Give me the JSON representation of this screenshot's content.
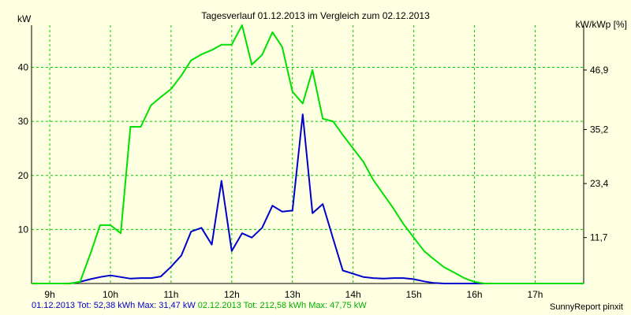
{
  "chart_data": {
    "type": "line",
    "title": "Tagesverlauf 01.12.2013 im Vergleich zum 02.12.2013",
    "ylabel_left": "kW",
    "ylabel_right": "kW/kWp [%]",
    "x_ticks": [
      {
        "value": 9,
        "label": "9h"
      },
      {
        "value": 10,
        "label": "10h"
      },
      {
        "value": 11,
        "label": "11h"
      },
      {
        "value": 12,
        "label": "12h"
      },
      {
        "value": 13,
        "label": "13h"
      },
      {
        "value": 14,
        "label": "14h"
      },
      {
        "value": 15,
        "label": "15h"
      },
      {
        "value": 16,
        "label": "16h"
      },
      {
        "value": 17,
        "label": "17h"
      }
    ],
    "y_ticks_left": [
      {
        "value": 10,
        "label": "10"
      },
      {
        "value": 20,
        "label": "20"
      },
      {
        "value": 30,
        "label": "30"
      },
      {
        "value": 40,
        "label": "40"
      }
    ],
    "y_ticks_right": [
      {
        "value": 8.5,
        "label": "11,7"
      },
      {
        "value": 18.5,
        "label": "23,4"
      },
      {
        "value": 28.5,
        "label": "35,2"
      },
      {
        "value": 39.5,
        "label": "46,9"
      }
    ],
    "xlim": [
      8.7,
      17.8
    ],
    "ylim": [
      0,
      47.8
    ],
    "grid": true,
    "series": [
      {
        "name": "01.12.2013",
        "color": "#0000cc",
        "x": [
          9.33,
          9.5,
          9.67,
          9.83,
          10.0,
          10.17,
          10.33,
          10.5,
          10.67,
          10.83,
          11.0,
          11.17,
          11.33,
          11.5,
          11.67,
          11.83,
          12.0,
          12.17,
          12.33,
          12.5,
          12.67,
          12.83,
          13.0,
          13.17,
          13.33,
          13.5,
          13.67,
          13.83,
          14.0,
          14.17,
          14.33,
          14.5,
          14.67,
          14.83,
          15.0,
          15.17,
          15.33,
          15.5,
          15.67,
          15.83,
          16.0,
          16.17,
          16.33,
          16.5,
          16.67,
          16.83,
          17.0,
          17.17,
          17.33,
          17.5
        ],
        "values": [
          0,
          0.3,
          0.8,
          1.2,
          1.5,
          1.2,
          0.9,
          1.0,
          1.0,
          1.3,
          3.1,
          5.2,
          9.6,
          10.3,
          7.2,
          19.0,
          6.0,
          9.3,
          8.5,
          10.3,
          14.4,
          13.3,
          13.5,
          31.3,
          13.0,
          14.7,
          8.3,
          2.4,
          1.8,
          1.2,
          1.0,
          0.9,
          1.0,
          1.0,
          0.8,
          0.4,
          0.1,
          0,
          0,
          0,
          0,
          0,
          0,
          0,
          0,
          0,
          0,
          0,
          0,
          0
        ]
      },
      {
        "name": "02.12.2013",
        "color": "#00e000",
        "x": [
          8.7,
          8.83,
          9.0,
          9.17,
          9.33,
          9.5,
          9.67,
          9.83,
          10.0,
          10.17,
          10.33,
          10.5,
          10.67,
          10.83,
          11.0,
          11.17,
          11.33,
          11.5,
          11.67,
          11.83,
          12.0,
          12.17,
          12.33,
          12.5,
          12.67,
          12.83,
          13.0,
          13.17,
          13.33,
          13.5,
          13.67,
          13.83,
          14.0,
          14.17,
          14.33,
          14.5,
          14.67,
          14.83,
          15.0,
          15.17,
          15.33,
          15.5,
          15.67,
          15.83,
          16.0,
          16.17,
          16.33,
          16.5,
          16.67,
          16.83,
          17.0,
          17.17,
          17.33,
          17.5,
          17.67,
          17.8
        ],
        "values": [
          0,
          0,
          0,
          0,
          0,
          0.3,
          5.5,
          10.8,
          10.8,
          9.3,
          29.0,
          29.0,
          33.0,
          34.5,
          36.0,
          38.5,
          41.3,
          42.4,
          43.2,
          44.2,
          44.2,
          47.8,
          40.5,
          42.3,
          46.5,
          43.8,
          35.5,
          33.3,
          39.5,
          30.5,
          30.0,
          27.5,
          25.0,
          22.5,
          19.2,
          16.5,
          13.8,
          11.0,
          8.5,
          6.0,
          4.5,
          3.0,
          2.0,
          1.0,
          0.3,
          0,
          0,
          0,
          0,
          0,
          0,
          0,
          0,
          0,
          0,
          0
        ]
      }
    ],
    "legend": [
      {
        "text": "01.12.2013 Tot: 52,38 kWh Max: 31,47 kW",
        "color": "#0000cc"
      },
      {
        "text": "02.12.2013 Tot: 212,58 kWh Max: 47,75 kW",
        "color": "#00b000"
      }
    ],
    "footer": "SunnyReport pinxit"
  }
}
